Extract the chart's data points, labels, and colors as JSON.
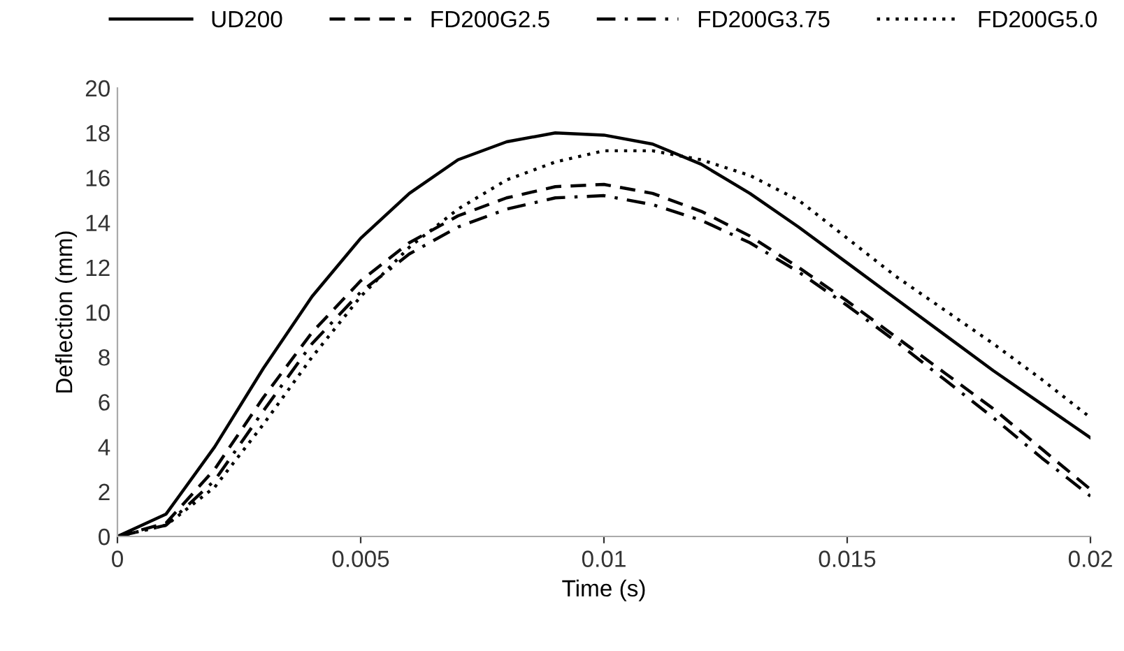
{
  "chart_data": {
    "type": "line",
    "xlabel": "Time (s)",
    "ylabel": "Deflection (mm)",
    "x": [
      0,
      0.001,
      0.002,
      0.003,
      0.004,
      0.005,
      0.006,
      0.007,
      0.008,
      0.009,
      0.01,
      0.011,
      0.012,
      0.013,
      0.014,
      0.015,
      0.016,
      0.017,
      0.018,
      0.019,
      0.02
    ],
    "series": [
      {
        "name": "UD200",
        "color": "#000000",
        "line_style": "solid",
        "values": [
          0,
          1.0,
          4.0,
          7.5,
          10.7,
          13.3,
          15.3,
          16.8,
          17.6,
          18.0,
          17.9,
          17.5,
          16.6,
          15.3,
          13.8,
          12.2,
          10.6,
          9.0,
          7.4,
          5.9,
          4.4
        ]
      },
      {
        "name": "FD200G2.5",
        "color": "#000000",
        "line_style": "dashed",
        "values": [
          0,
          0.6,
          3.0,
          6.2,
          9.1,
          11.4,
          13.1,
          14.3,
          15.1,
          15.6,
          15.7,
          15.3,
          14.5,
          13.4,
          12.0,
          10.5,
          8.9,
          7.3,
          5.7,
          3.9,
          2.1
        ]
      },
      {
        "name": "FD200G3.75",
        "color": "#000000",
        "line_style": "dashdot",
        "values": [
          0,
          0.5,
          2.5,
          5.6,
          8.6,
          10.9,
          12.6,
          13.8,
          14.6,
          15.1,
          15.2,
          14.8,
          14.1,
          13.1,
          11.8,
          10.3,
          8.7,
          7.0,
          5.3,
          3.5,
          1.8
        ]
      },
      {
        "name": "FD200G5.0",
        "color": "#000000",
        "line_style": "dotted",
        "values": [
          0,
          0.5,
          2.2,
          5.0,
          8.0,
          10.7,
          12.9,
          14.6,
          15.9,
          16.7,
          17.2,
          17.2,
          16.8,
          16.1,
          15.0,
          13.3,
          11.6,
          10.1,
          8.6,
          7.0,
          5.3
        ]
      }
    ],
    "xlim": [
      0,
      0.02
    ],
    "xticks": [
      0,
      0.005,
      0.01,
      0.015,
      0.02
    ],
    "ylim": [
      0,
      20
    ],
    "yticks": [
      0,
      2,
      4,
      6,
      8,
      10,
      12,
      14,
      16,
      18,
      20
    ],
    "grid": false,
    "legend": "top",
    "marker": "none"
  }
}
